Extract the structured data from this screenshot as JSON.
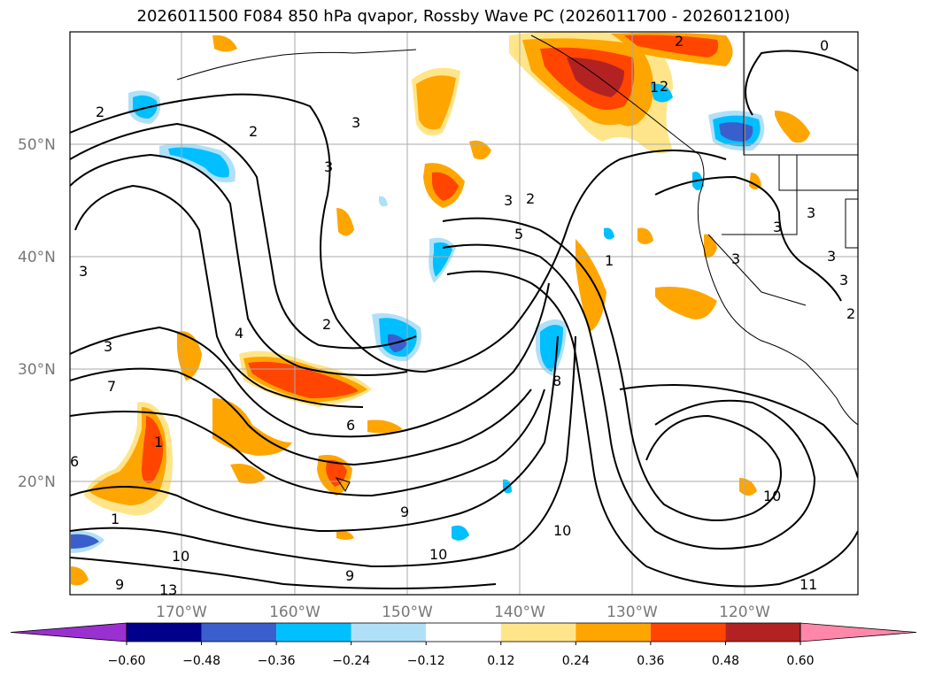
{
  "title": "2026011500 F084 850 hPa qvapor, Rossby Wave PC (2026011700 - 2026012100)",
  "lat_ticks": [
    "50°N",
    "40°N",
    "30°N",
    "20°N"
  ],
  "lon_ticks": [
    "170°W",
    "160°W",
    "150°W",
    "140°W",
    "130°W",
    "120°W"
  ],
  "colorbar": {
    "tick_labels": [
      "−0.60",
      "−0.48",
      "−0.36",
      "−0.24",
      "−0.12",
      "0.12",
      "0.24",
      "0.36",
      "0.48",
      "0.60"
    ],
    "colors": [
      "#9b30d0",
      "#00008b",
      "#3a5fcd",
      "#00bfff",
      "#b0e0f8",
      "#ffffff",
      "#ffe58a",
      "#ffa500",
      "#ff4500",
      "#b22222",
      "#ff88aa"
    ]
  },
  "contour_labels": [
    "2",
    "3",
    "0",
    "2",
    "1",
    "3",
    "2",
    "3",
    "3",
    "3",
    "3",
    "3",
    "2",
    "1",
    "5",
    "3",
    "2",
    "4",
    "2",
    "7",
    "6",
    "8",
    "9",
    "10",
    "10",
    "10",
    "11",
    "9",
    "1",
    "6",
    "10",
    "9",
    "13",
    "1",
    "3",
    "2",
    "3"
  ]
}
